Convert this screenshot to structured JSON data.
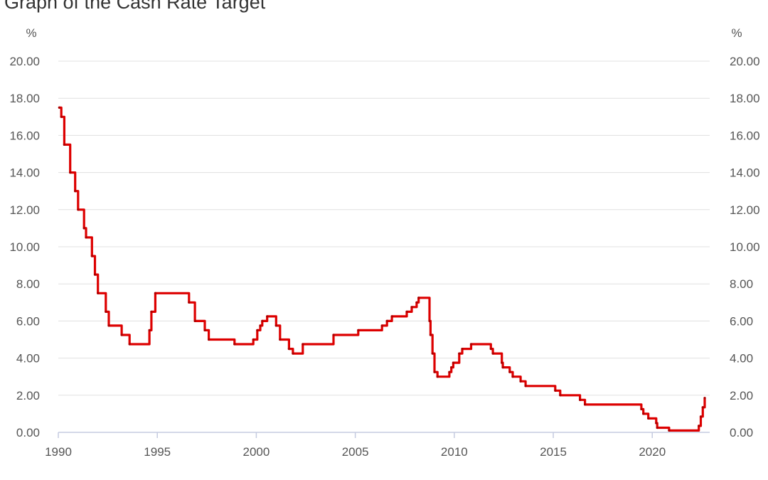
{
  "page": {
    "title": "Graph of the Cash Rate Target"
  },
  "chart_data": {
    "type": "line",
    "title": "Graph of the Cash Rate Target",
    "ylabel_left": "%",
    "ylabel_right": "%",
    "ylim": [
      0,
      20
    ],
    "xlim": [
      1990,
      2022.9
    ],
    "y_ticks": [
      "0.00",
      "2.00",
      "4.00",
      "6.00",
      "8.00",
      "10.00",
      "12.00",
      "14.00",
      "16.00",
      "18.00",
      "20.00"
    ],
    "x_ticks": [
      "1990",
      "1995",
      "2000",
      "2005",
      "2010",
      "2015",
      "2020"
    ],
    "grid": true,
    "colors": {
      "line": "#dd0000",
      "grid": "#e0e0e0",
      "axis": "#c5cbe0",
      "text": "#555555"
    },
    "series": [
      {
        "values": [
          [
            1990.05,
            17.5
          ],
          [
            1990.15,
            17.0
          ],
          [
            1990.3,
            15.5
          ],
          [
            1990.6,
            14.0
          ],
          [
            1990.85,
            13.0
          ],
          [
            1991.0,
            12.0
          ],
          [
            1991.3,
            11.0
          ],
          [
            1991.4,
            10.5
          ],
          [
            1991.7,
            9.5
          ],
          [
            1991.85,
            8.5
          ],
          [
            1992.0,
            7.5
          ],
          [
            1992.4,
            6.5
          ],
          [
            1992.55,
            5.75
          ],
          [
            1993.2,
            5.25
          ],
          [
            1993.6,
            4.75
          ],
          [
            1994.6,
            5.5
          ],
          [
            1994.7,
            6.5
          ],
          [
            1994.9,
            7.5
          ],
          [
            1996.6,
            7.0
          ],
          [
            1996.9,
            6.0
          ],
          [
            1997.4,
            5.5
          ],
          [
            1997.6,
            5.0
          ],
          [
            1998.9,
            4.75
          ],
          [
            1999.85,
            5.0
          ],
          [
            2000.05,
            5.5
          ],
          [
            2000.2,
            5.75
          ],
          [
            2000.3,
            6.0
          ],
          [
            2000.55,
            6.25
          ],
          [
            2001.0,
            5.75
          ],
          [
            2001.2,
            5.0
          ],
          [
            2001.65,
            4.5
          ],
          [
            2001.85,
            4.25
          ],
          [
            2002.35,
            4.75
          ],
          [
            2003.9,
            5.25
          ],
          [
            2005.15,
            5.5
          ],
          [
            2006.35,
            5.75
          ],
          [
            2006.6,
            6.0
          ],
          [
            2006.85,
            6.25
          ],
          [
            2007.6,
            6.5
          ],
          [
            2007.85,
            6.75
          ],
          [
            2008.1,
            7.0
          ],
          [
            2008.2,
            7.25
          ],
          [
            2008.75,
            6.0
          ],
          [
            2008.8,
            5.25
          ],
          [
            2008.9,
            4.25
          ],
          [
            2009.0,
            3.25
          ],
          [
            2009.15,
            3.0
          ],
          [
            2009.75,
            3.25
          ],
          [
            2009.85,
            3.5
          ],
          [
            2009.95,
            3.75
          ],
          [
            2010.25,
            4.25
          ],
          [
            2010.4,
            4.5
          ],
          [
            2010.85,
            4.75
          ],
          [
            2011.85,
            4.5
          ],
          [
            2011.95,
            4.25
          ],
          [
            2012.4,
            3.75
          ],
          [
            2012.45,
            3.5
          ],
          [
            2012.8,
            3.25
          ],
          [
            2012.95,
            3.0
          ],
          [
            2013.35,
            2.75
          ],
          [
            2013.6,
            2.5
          ],
          [
            2015.1,
            2.25
          ],
          [
            2015.35,
            2.0
          ],
          [
            2016.35,
            1.75
          ],
          [
            2016.6,
            1.5
          ],
          [
            2019.45,
            1.25
          ],
          [
            2019.55,
            1.0
          ],
          [
            2019.8,
            0.75
          ],
          [
            2020.2,
            0.5
          ],
          [
            2020.25,
            0.25
          ],
          [
            2020.85,
            0.1
          ],
          [
            2022.35,
            0.35
          ],
          [
            2022.45,
            0.85
          ],
          [
            2022.55,
            1.35
          ],
          [
            2022.65,
            1.85
          ]
        ]
      }
    ]
  }
}
